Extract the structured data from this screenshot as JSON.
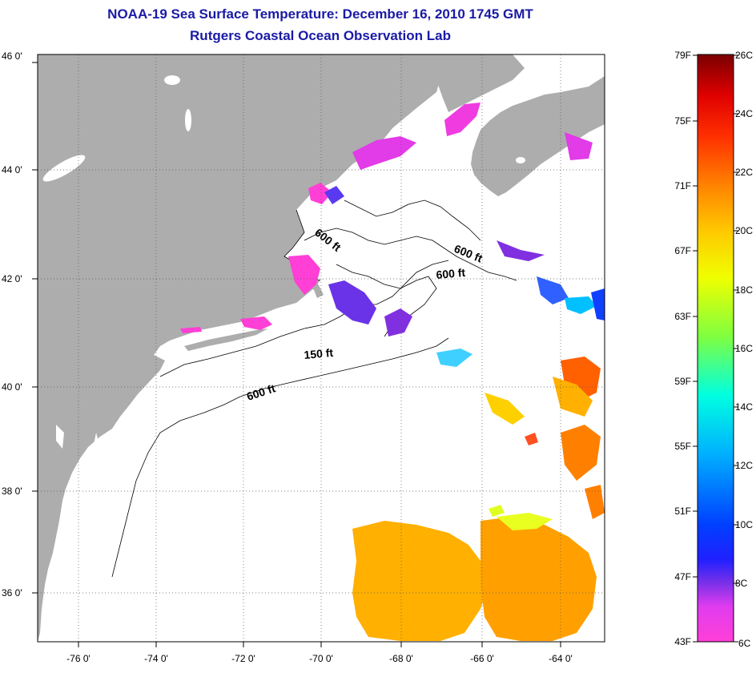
{
  "title": {
    "line1": "NOAA-19 Sea Surface Temperature:  December 16, 2010 1745 GMT",
    "line2": "Rutgers Coastal Ocean Observation Lab"
  },
  "map": {
    "lon_labels": [
      "-76 0'",
      "-74 0'",
      "-72 0'",
      "-70 0'",
      "-68 0'",
      "-66 0'",
      "-64 0'"
    ],
    "lat_labels": [
      "46 0'",
      "44 0'",
      "42 0'",
      "40 0'",
      "38 0'",
      "36 0'"
    ],
    "isobaths": [
      "600 ft",
      "600 ft",
      "600 ft",
      "150 ft",
      "600 ft"
    ],
    "colors": {
      "land": "#adadad",
      "ocean": "#ffffff",
      "frame": "#000000"
    }
  },
  "colorbar": {
    "fahrenheit": [
      "79F",
      "75F",
      "71F",
      "67F",
      "63F",
      "59F",
      "55F",
      "51F",
      "47F",
      "43F"
    ],
    "celsius": [
      "26C",
      "24C",
      "22C",
      "20C",
      "18C",
      "16C",
      "14C",
      "12C",
      "10C",
      "8C",
      "6C"
    ]
  }
}
